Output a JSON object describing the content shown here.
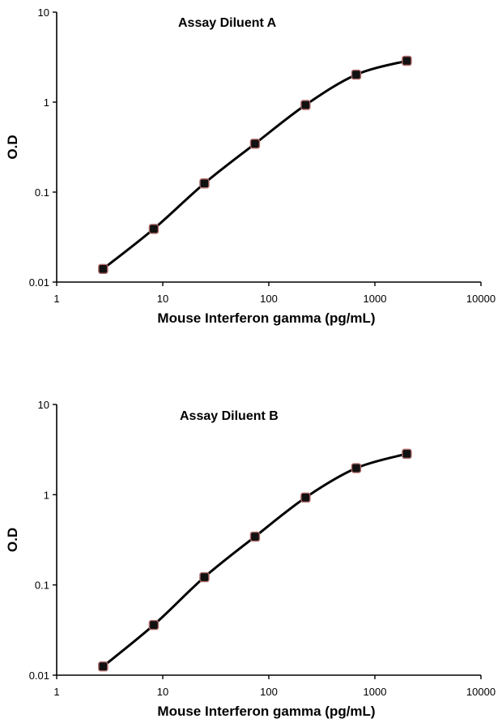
{
  "chart_data": [
    {
      "type": "line",
      "title": "Assay Diluent A",
      "xlabel": "Mouse Interferon gamma (pg/mL)",
      "ylabel": "O.D",
      "xscale": "log",
      "yscale": "log",
      "xlim": [
        1,
        10000
      ],
      "ylim": [
        0.01,
        10
      ],
      "xticks": [
        "1",
        "10",
        "100",
        "1000",
        "10000"
      ],
      "yticks": [
        "0.01",
        "0.1",
        "1",
        "10"
      ],
      "grid": false,
      "legend": "none",
      "series": [
        {
          "x": [
            2.74,
            8.23,
            24.7,
            74.1,
            222,
            667,
            2000
          ],
          "y": [
            0.014,
            0.039,
            0.125,
            0.345,
            0.93,
            2.02,
            2.88
          ]
        }
      ]
    },
    {
      "type": "line",
      "title": "Assay Diluent B",
      "xlabel": "Mouse Interferon gamma (pg/mL)",
      "ylabel": "O.D",
      "xscale": "log",
      "yscale": "log",
      "xlim": [
        1,
        10000
      ],
      "ylim": [
        0.01,
        10
      ],
      "xticks": [
        "1",
        "10",
        "100",
        "1000",
        "10000"
      ],
      "yticks": [
        "0.01",
        "0.1",
        "1",
        "10"
      ],
      "grid": false,
      "legend": "none",
      "series": [
        {
          "x": [
            2.74,
            8.23,
            24.7,
            74.1,
            222,
            667,
            2000
          ],
          "y": [
            0.0125,
            0.036,
            0.122,
            0.343,
            0.93,
            1.97,
            2.84
          ]
        }
      ]
    }
  ]
}
